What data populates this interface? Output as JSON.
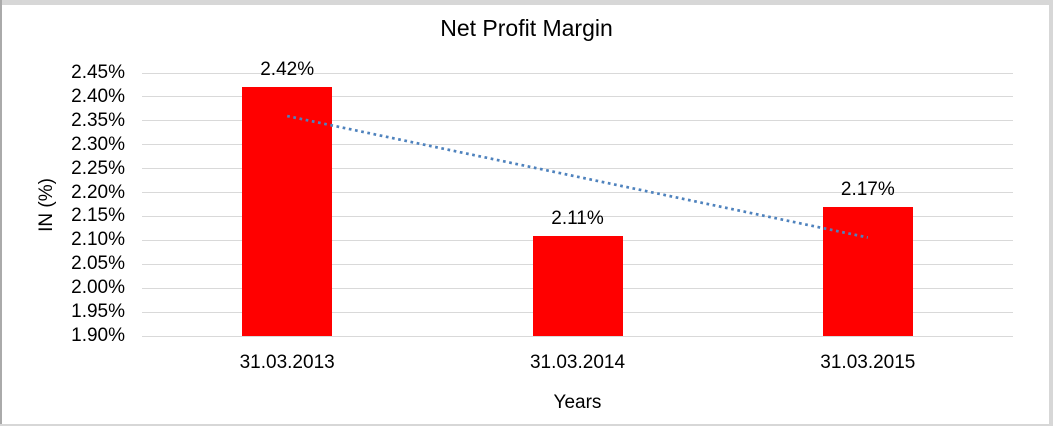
{
  "chart_data": {
    "type": "bar",
    "title": "Net Profit Margin",
    "xlabel": "Years",
    "ylabel": "IN (%)",
    "categories": [
      "31.03.2013",
      "31.03.2014",
      "31.03.2015"
    ],
    "series": [
      {
        "name": "Net Profit Margin",
        "values": [
          2.42,
          2.11,
          2.17
        ]
      }
    ],
    "data_labels": [
      "2.42%",
      "2.11%",
      "2.17%"
    ],
    "y_ticks": [
      "2.45%",
      "2.40%",
      "2.35%",
      "2.30%",
      "2.25%",
      "2.20%",
      "2.15%",
      "2.10%",
      "2.05%",
      "2.00%",
      "1.95%",
      "1.90%"
    ],
    "ylim": [
      1.9,
      2.45
    ],
    "y_step": 0.05,
    "grid": true,
    "legend": "none",
    "bar_color": "#ff0000",
    "gridline_color": "#d9d9d9",
    "trendline": {
      "type": "linear",
      "style": "dotted",
      "color": "#4e82bd",
      "start_value": 2.36,
      "end_value": 2.106
    }
  }
}
